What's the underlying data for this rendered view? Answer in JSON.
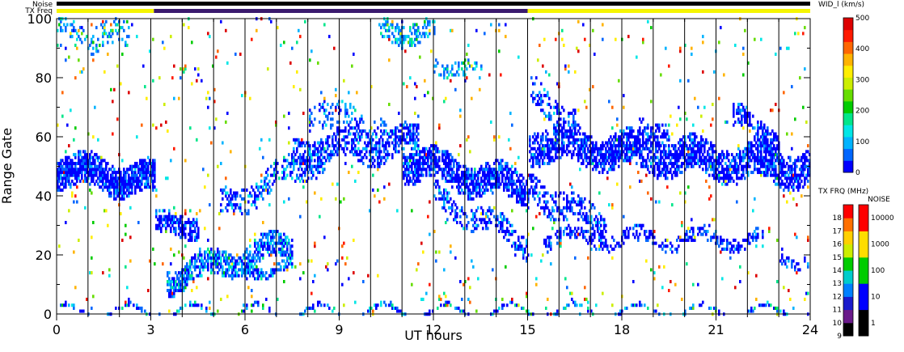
{
  "chart_data": {
    "type": "heatmap",
    "title": "",
    "xlabel": "UT hours",
    "ylabel": "Range Gate",
    "xlim": [
      0,
      24
    ],
    "ylim": [
      0,
      100
    ],
    "x_ticks": [
      "0",
      "3",
      "6",
      "9",
      "12",
      "15",
      "18",
      "21",
      "24"
    ],
    "y_ticks": [
      "0",
      "20",
      "40",
      "60",
      "80",
      "100"
    ],
    "scan_boundaries_hours": [
      1,
      2,
      3,
      4,
      5,
      6,
      7,
      8,
      9,
      10,
      11,
      12,
      13,
      14,
      15,
      16,
      17,
      18,
      19,
      20,
      21,
      22,
      23
    ],
    "parameter_label": "WID_l (km/s)",
    "noise_label": "Noise",
    "txfreq_label": "TX Freq",
    "noise_bar_color": "#000000",
    "txfreq_segments": [
      {
        "start": 0,
        "end": 3.1,
        "color": "#f5f500"
      },
      {
        "start": 3.1,
        "end": 15,
        "color": "#3a1a6e"
      },
      {
        "start": 15,
        "end": 24,
        "color": "#f5f500"
      }
    ],
    "width_colorbar": {
      "label": "WID_l (km/s)",
      "range": [
        0,
        500
      ],
      "ticks": [
        "0",
        "100",
        "200",
        "300",
        "400",
        "500"
      ],
      "colors": [
        "#0000ff",
        "#0066ff",
        "#00b3ff",
        "#00e6e6",
        "#00e68a",
        "#00cc00",
        "#66dd00",
        "#ccee00",
        "#ffee00",
        "#ffb300",
        "#ff6600",
        "#ff1a00",
        "#dd0000"
      ]
    },
    "freq_colorbar": {
      "label": "TX FRQ (MHz)",
      "ticks": [
        "9",
        "10",
        "11",
        "12",
        "13",
        "14",
        "15",
        "16",
        "17",
        "18"
      ],
      "colors": [
        "#000000",
        "#6a1a8a",
        "#1a1acc",
        "#0080ff",
        "#00cccc",
        "#00cc00",
        "#ccee00",
        "#ffd000",
        "#ff7000",
        "#ff0000"
      ]
    },
    "noise_colorbar": {
      "label": "NOISE",
      "ticks": [
        "1",
        "10",
        "100",
        "1000",
        "10000"
      ],
      "colors": [
        "#000000",
        "#0000ff",
        "#00cc00",
        "#ffdd00",
        "#ff0000"
      ]
    },
    "bands": [
      {
        "t0": 0,
        "t1": 3.1,
        "center0": 49,
        "center1": 45,
        "width": 11,
        "density": 0.92,
        "wmin": 0,
        "wmax": 120
      },
      {
        "t0": 0,
        "t1": 2.3,
        "center0": 96,
        "center1": 93,
        "width": 9,
        "density": 0.28,
        "wmin": 40,
        "wmax": 280
      },
      {
        "t0": 3.1,
        "t1": 4.5,
        "center0": 29,
        "center1": 31,
        "width": 8,
        "density": 0.75,
        "wmin": 0,
        "wmax": 130
      },
      {
        "t0": 3.5,
        "t1": 7.5,
        "center0": 12,
        "center1": 24,
        "width": 9,
        "density": 0.65,
        "wmin": 20,
        "wmax": 220
      },
      {
        "t0": 6.0,
        "t1": 7.5,
        "center0": 16,
        "center1": 15,
        "width": 4,
        "density": 0.6,
        "wmin": 20,
        "wmax": 180
      },
      {
        "t0": 5.2,
        "t1": 8.5,
        "center0": 36,
        "center1": 54,
        "width": 9,
        "density": 0.4,
        "wmin": 0,
        "wmax": 200
      },
      {
        "t0": 7.5,
        "t1": 11.5,
        "center0": 55,
        "center1": 58,
        "width": 10,
        "density": 0.55,
        "wmin": 0,
        "wmax": 150
      },
      {
        "t0": 8.0,
        "t1": 10.5,
        "center0": 68,
        "center1": 62,
        "width": 10,
        "density": 0.3,
        "wmin": 20,
        "wmax": 180
      },
      {
        "t0": 11.0,
        "t1": 15.0,
        "center0": 52,
        "center1": 42,
        "width": 11,
        "density": 0.75,
        "wmin": 0,
        "wmax": 120
      },
      {
        "t0": 12.0,
        "t1": 15.0,
        "center0": 40,
        "center1": 24,
        "width": 8,
        "density": 0.45,
        "wmin": 0,
        "wmax": 150
      },
      {
        "t0": 10.2,
        "t1": 12.0,
        "center0": 96,
        "center1": 96,
        "width": 8,
        "density": 0.45,
        "wmin": 40,
        "wmax": 300
      },
      {
        "t0": 12.0,
        "t1": 13.5,
        "center0": 86,
        "center1": 80,
        "width": 6,
        "density": 0.3,
        "wmin": 40,
        "wmax": 250
      },
      {
        "t0": 15.0,
        "t1": 24.0,
        "center0": 58,
        "center1": 49,
        "width": 12,
        "density": 0.72,
        "wmin": 0,
        "wmax": 110
      },
      {
        "t0": 15.0,
        "t1": 17.5,
        "center0": 44,
        "center1": 28,
        "width": 10,
        "density": 0.45,
        "wmin": 0,
        "wmax": 140
      },
      {
        "t0": 15.5,
        "t1": 22.5,
        "center0": 26,
        "center1": 25,
        "width": 5,
        "density": 0.45,
        "wmin": 0,
        "wmax": 130
      },
      {
        "t0": 15.0,
        "t1": 16.5,
        "center0": 74,
        "center1": 66,
        "width": 10,
        "density": 0.35,
        "wmin": 0,
        "wmax": 150
      },
      {
        "t0": 18.5,
        "t1": 19.5,
        "center0": 66,
        "center1": 58,
        "width": 8,
        "density": 0.5,
        "wmin": 0,
        "wmax": 120
      },
      {
        "t0": 21.5,
        "t1": 23.0,
        "center0": 66,
        "center1": 60,
        "width": 8,
        "density": 0.6,
        "wmin": 0,
        "wmax": 120
      },
      {
        "t0": 23.0,
        "t1": 24.0,
        "center0": 20,
        "center1": 18,
        "width": 4,
        "density": 0.35,
        "wmin": 0,
        "wmax": 140
      },
      {
        "t0": 0,
        "t1": 24.0,
        "center0": 0.8,
        "center1": 0.8,
        "width": 1.6,
        "density": 0.55,
        "wmin": 0,
        "wmax": 300
      }
    ],
    "scatter_density": 0.018
  }
}
